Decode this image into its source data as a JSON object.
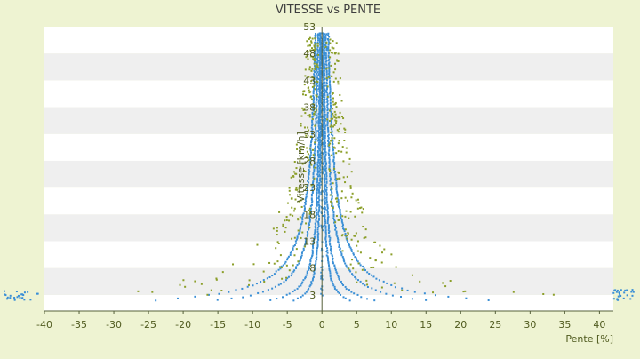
{
  "chart_data": {
    "type": "scatter",
    "title": "VITESSE vs PENTE",
    "xlabel": "Pente [%]",
    "ylabel": "Vitesse [km/h]",
    "xlim": [
      -40,
      42
    ],
    "ylim": [
      0,
      53
    ],
    "x_ticks": [
      -40,
      -35,
      -30,
      -25,
      -20,
      -15,
      -10,
      -5,
      0,
      5,
      10,
      15,
      20,
      25,
      30,
      35,
      40
    ],
    "y_ticks": [
      3,
      8,
      13,
      18,
      23,
      28,
      33,
      38,
      43,
      48,
      53
    ],
    "legend": "none",
    "grid": "horizontal alternating bands",
    "colors": {
      "background": "#eef3d2",
      "band_light": "#ffffff",
      "band_dark": "#efefef",
      "text": "#4f5a1e",
      "title": "#3e3e3e",
      "axis": "#55603a",
      "series_blue": "#3a8fd6",
      "series_olive": "#8c9f2a"
    },
    "series": [
      {
        "color": "#3a8fd6",
        "curves_k": [
          8,
          15,
          30,
          48
        ],
        "points_per_curve": 160,
        "min_speed": 2,
        "max_speed": 52
      },
      {
        "color": "#8c9f2a",
        "scattered_count": 420
      }
    ]
  }
}
